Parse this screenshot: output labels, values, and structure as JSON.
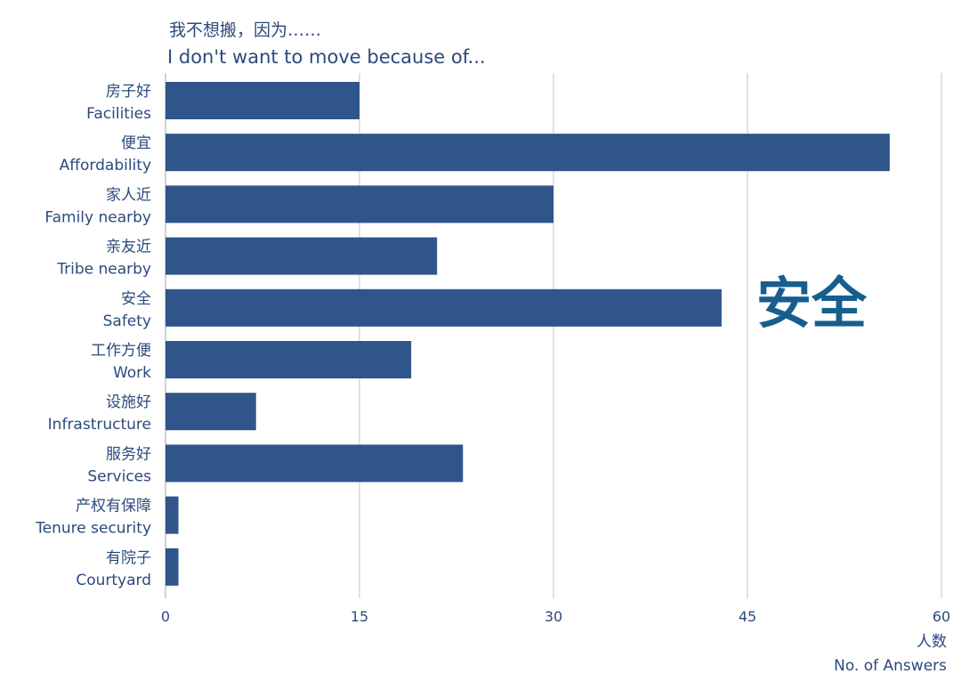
{
  "chart_data": {
    "type": "bar",
    "orientation": "horizontal",
    "title": "我不想搬，因为……",
    "subtitle": "I don't want to move because of...",
    "categories": [
      {
        "cn": "房子好",
        "en": "Facilities"
      },
      {
        "cn": "便宜",
        "en": "Affordability"
      },
      {
        "cn": "家人近",
        "en": "Family nearby"
      },
      {
        "cn": "亲友近",
        "en": "Tribe nearby"
      },
      {
        "cn": "安全",
        "en": "Safety"
      },
      {
        "cn": "工作方便",
        "en": "Work"
      },
      {
        "cn": "设施好",
        "en": "Infrastructure"
      },
      {
        "cn": "服务好",
        "en": "Services"
      },
      {
        "cn": "产权有保障",
        "en": "Tenure security"
      },
      {
        "cn": "有院子",
        "en": "Courtyard"
      }
    ],
    "values": [
      15,
      56,
      30,
      21,
      43,
      19,
      7,
      23,
      1,
      1
    ],
    "xlim": [
      0,
      60
    ],
    "xticks": [
      0,
      15,
      30,
      45,
      60
    ],
    "xlabel_cn": "人数",
    "xlabel_en": "No. of Answers",
    "grid": true,
    "bar_color": "#2f558b",
    "annotation": {
      "text": "安全",
      "color": "#175e8e"
    }
  }
}
